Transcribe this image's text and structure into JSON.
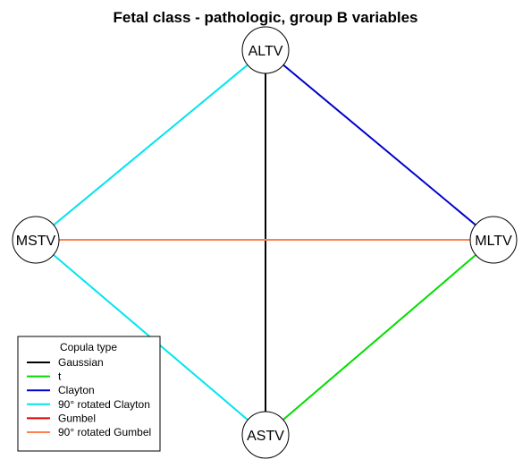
{
  "title": "Fetal class - pathologic, group B variables",
  "nodes": [
    {
      "id": "ALTV",
      "label": "ALTV"
    },
    {
      "id": "MSTV",
      "label": "MSTV"
    },
    {
      "id": "MLTV",
      "label": "MLTV"
    },
    {
      "id": "ASTV",
      "label": "ASTV"
    }
  ],
  "edges": [
    {
      "from": "ALTV",
      "to": "ASTV",
      "type": "Gaussian",
      "color": "#000000"
    },
    {
      "from": "ALTV",
      "to": "MLTV",
      "type": "Clayton",
      "color": "#0000cc"
    },
    {
      "from": "ALTV",
      "to": "MSTV",
      "type": "90° rotated Clayton",
      "color": "#00e5ee"
    },
    {
      "from": "MSTV",
      "to": "ASTV",
      "type": "90° rotated Clayton",
      "color": "#00e5ee"
    },
    {
      "from": "MSTV",
      "to": "MLTV",
      "type": "90° rotated Gumbel",
      "color": "#ff7f50"
    },
    {
      "from": "MLTV",
      "to": "ASTV",
      "type": "t",
      "color": "#00dd00"
    }
  ],
  "legend": {
    "title": "Copula type",
    "items": [
      {
        "label": "Gaussian",
        "color": "#000000"
      },
      {
        "label": "t",
        "color": "#00dd00"
      },
      {
        "label": "Clayton",
        "color": "#0000cc"
      },
      {
        "label": "90° rotated Clayton",
        "color": "#00e5ee"
      },
      {
        "label": "Gumbel",
        "color": "#dd0000"
      },
      {
        "label": "90° rotated Gumbel",
        "color": "#ff7f50"
      }
    ]
  }
}
